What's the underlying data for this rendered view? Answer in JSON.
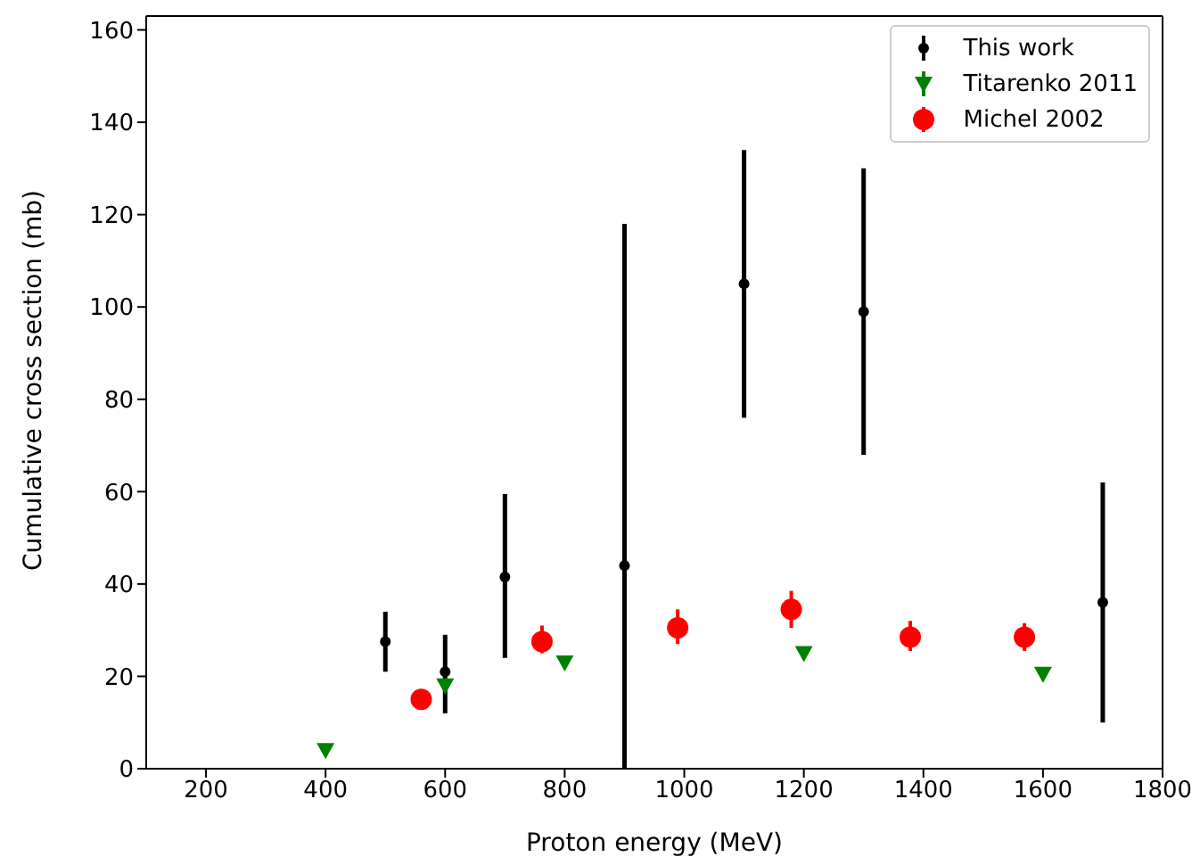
{
  "chart_data": {
    "type": "scatter",
    "xlabel": "Proton energy (MeV)",
    "ylabel": "Cumulative cross section (mb)",
    "xlim": [
      100,
      1800
    ],
    "xticks": [
      200,
      400,
      600,
      800,
      1000,
      1200,
      1400,
      1600,
      1800
    ],
    "ylim": [
      0,
      163
    ],
    "yticks": [
      0,
      20,
      40,
      60,
      80,
      100,
      120,
      140,
      160
    ],
    "legend": "top right",
    "series": [
      {
        "name": "This work",
        "color": "#000000",
        "marker": "circle",
        "x": [
          500,
          600,
          700,
          900,
          1100,
          1300,
          1700
        ],
        "values": [
          27.5,
          21,
          41.5,
          44,
          105,
          99,
          36
        ],
        "errors": [
          [
            21,
            34
          ],
          [
            12,
            29
          ],
          [
            24,
            59.5
          ],
          [
            0,
            118
          ],
          [
            76,
            134
          ],
          [
            68,
            130
          ],
          [
            10,
            62
          ]
        ]
      },
      {
        "name": "Titarenko 2011",
        "color": "#008000",
        "marker": "triangle",
        "x": [
          400,
          600,
          800,
          1200,
          1600
        ],
        "values": [
          4,
          18,
          23,
          25,
          20.5
        ]
      },
      {
        "name": "Michel 2002",
        "color": "#ff0000",
        "marker": "circle",
        "x": [
          560,
          762,
          989,
          1179,
          1378,
          1569
        ],
        "values": [
          15,
          27.5,
          30.5,
          34.5,
          28.5,
          28.5
        ],
        "errors": [
          null,
          [
            25,
            31
          ],
          [
            27,
            34.5
          ],
          [
            30.5,
            38.5
          ],
          [
            25.5,
            32
          ],
          [
            25.5,
            31.5
          ]
        ]
      }
    ]
  }
}
